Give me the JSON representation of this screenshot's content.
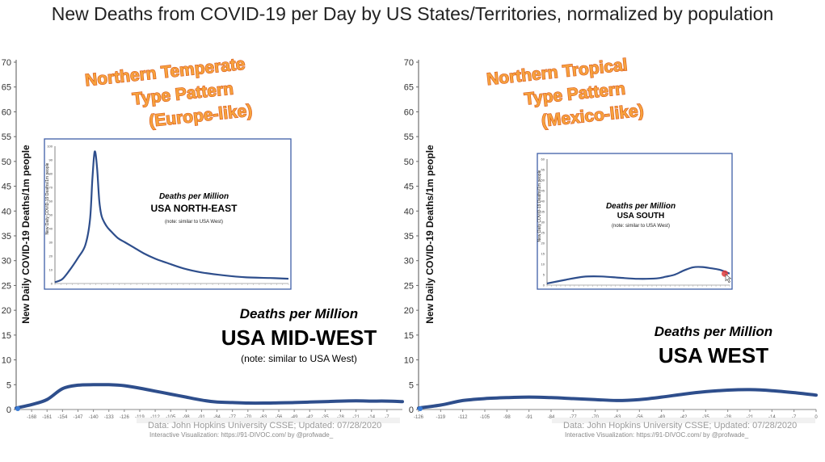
{
  "title": "New Deaths from COVID-19 per Day by US States/Territories, normalized by population",
  "chart_data": [
    {
      "type": "line",
      "panel": "left",
      "ylabel": "New Daily COVID-19 Deaths/1m people",
      "ylim": [
        0,
        70
      ],
      "yticks": [
        0,
        5,
        10,
        15,
        20,
        25,
        30,
        35,
        40,
        45,
        50,
        55,
        60,
        65,
        70
      ],
      "xlim": [
        -175,
        0
      ],
      "xticks": [
        -168,
        -161,
        -154,
        -147,
        -140,
        -133,
        -126,
        -119,
        -112,
        -105,
        -98,
        -91,
        -84,
        -77,
        -70,
        -63,
        -56,
        -49,
        -42,
        -35,
        -28,
        -21,
        -14,
        -7
      ],
      "series": [
        {
          "x": [
            -175,
            -168,
            -161,
            -154,
            -147,
            -140,
            -133,
            -126,
            -119,
            -112,
            -105,
            -98,
            -91,
            -84,
            -77,
            -70,
            -63,
            -56,
            -49,
            -42,
            -35,
            -28,
            -21,
            -14,
            -7,
            0
          ],
          "y": [
            0.3,
            1.0,
            2.0,
            4.2,
            4.9,
            5.0,
            5.0,
            4.8,
            4.3,
            3.7,
            3.1,
            2.5,
            1.9,
            1.5,
            1.4,
            1.3,
            1.3,
            1.35,
            1.4,
            1.5,
            1.6,
            1.7,
            1.75,
            1.7,
            1.7,
            1.6
          ]
        }
      ],
      "annotation": {
        "pattern": [
          "Northern Temperate",
          "Type Pattern",
          "(Europe-like)"
        ],
        "heading": "Deaths per Million",
        "region": "USA MID-WEST",
        "note": "(note: similar to USA West)"
      },
      "source": "Data: John Hopkins University CSSE; Updated: 07/28/2020",
      "credit": "Interactive Visualization: https://91-DIVOC.com/ by @profwade_",
      "inset": {
        "ylabel": "New Daily COVID-19 Deaths/1m people",
        "ylim": [
          0,
          100
        ],
        "yticks": [
          0,
          10,
          20,
          30,
          40,
          50,
          60,
          70,
          80,
          90,
          100
        ],
        "heading": "Deaths per Million",
        "region": "USA NORTH-EAST",
        "note": "(note: similar to USA West)",
        "series": [
          {
            "x": [
              0,
              3,
              6,
              10,
              13,
              15,
              16,
              17,
              18,
              19,
              20,
              22,
              24,
              27,
              30,
              34,
              38,
              43,
              48,
              55,
              63,
              72,
              82,
              92,
              100
            ],
            "y": [
              1,
              3,
              9,
              19,
              28,
              46,
              75,
              96,
              85,
              60,
              49,
              42,
              38,
              33,
              30,
              26,
              22,
              18,
              15,
              11,
              8,
              6,
              4.5,
              4,
              3.5
            ]
          }
        ]
      }
    },
    {
      "type": "line",
      "panel": "right",
      "ylabel": "New Daily COVID-19 Deaths/1m people",
      "ylim": [
        0,
        70
      ],
      "yticks": [
        0,
        5,
        10,
        15,
        20,
        25,
        30,
        35,
        40,
        45,
        50,
        55,
        60,
        65,
        70
      ],
      "xlim": [
        -126,
        0
      ],
      "xticks": [
        -126,
        -119,
        -112,
        -105,
        -98,
        -91,
        -84,
        -77,
        -70,
        -63,
        -56,
        -49,
        -42,
        -35,
        -28,
        -21,
        -14,
        -7,
        0
      ],
      "series": [
        {
          "x": [
            -126,
            -119,
            -112,
            -105,
            -98,
            -91,
            -84,
            -77,
            -70,
            -63,
            -56,
            -49,
            -42,
            -35,
            -28,
            -21,
            -14,
            -7,
            0
          ],
          "y": [
            0.3,
            0.9,
            1.8,
            2.2,
            2.4,
            2.5,
            2.4,
            2.2,
            2.0,
            1.8,
            2.0,
            2.5,
            3.1,
            3.6,
            3.9,
            4.0,
            3.8,
            3.4,
            2.9
          ]
        }
      ],
      "annotation": {
        "pattern": [
          "Northern Tropical",
          "Type Pattern",
          "(Mexico-like)"
        ],
        "heading": "Deaths per Million",
        "region": "USA WEST"
      },
      "source": "Data: John Hopkins University CSSE; Updated: 07/28/2020",
      "credit": "Interactive Visualization: https://91-DIVOC.com/ by @profwade_",
      "inset": {
        "ylabel": "New Daily COVID-19 Deaths/1m people",
        "ylim": [
          0,
          60
        ],
        "yticks": [
          0,
          5,
          10,
          15,
          20,
          25,
          30,
          35,
          40,
          45,
          50,
          55,
          60
        ],
        "heading": "Deaths per Million",
        "region": "USA SOUTH",
        "note": "(note: similar to USA West)",
        "series": [
          {
            "x": [
              0,
              10,
              20,
              30,
              40,
              50,
              60,
              65,
              70,
              75,
              80,
              85,
              90,
              95,
              100
            ],
            "y": [
              0.8,
              2.5,
              4.0,
              4.1,
              3.5,
              3.0,
              3.2,
              4.0,
              5.0,
              7.0,
              8.5,
              8.6,
              8.0,
              7.2,
              5.5
            ]
          }
        ]
      }
    }
  ]
}
